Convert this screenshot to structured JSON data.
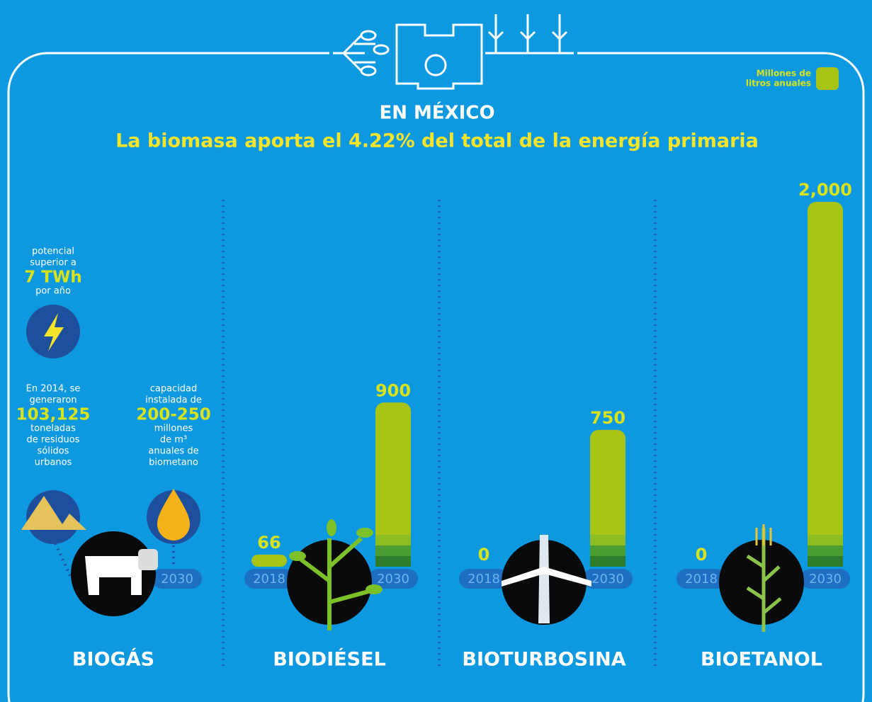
{
  "header": {
    "title": "EN MÉXICO",
    "subtitle": "La biomasa aporta el 4.22% del total de la energía primaria"
  },
  "legend": [
    "Millones de",
    "litros anuales"
  ],
  "biogas": {
    "potential": {
      "before": [
        "potencial",
        "superior a"
      ],
      "highlight": "7 TWh",
      "after": [
        "por año"
      ]
    },
    "waste": {
      "before": [
        "En 2014, se",
        "generaron"
      ],
      "highlight": "103,125",
      "after": [
        "toneladas",
        "de residuos",
        "sólidos",
        "urbanos"
      ]
    },
    "capacity": {
      "before": [
        "capacidad",
        "instalada de"
      ],
      "highlight": "200-250",
      "after": [
        "millones",
        "de m³",
        "anuales de",
        "biometano"
      ]
    }
  },
  "chart_data": {
    "type": "bar",
    "categories": [
      "BIOGÁS",
      "BIODIÉSEL",
      "BIOTURBOSINA",
      "BIOETANOL"
    ],
    "series": [
      {
        "name": "2018",
        "color": "#a8c416",
        "values": [
          null,
          66,
          0,
          0
        ]
      },
      {
        "name": "2030",
        "color": "#a8c416",
        "values": [
          null,
          900,
          750,
          2000
        ],
        "value_labels": [
          null,
          "900",
          "750",
          "2,000"
        ]
      }
    ]
  }
}
